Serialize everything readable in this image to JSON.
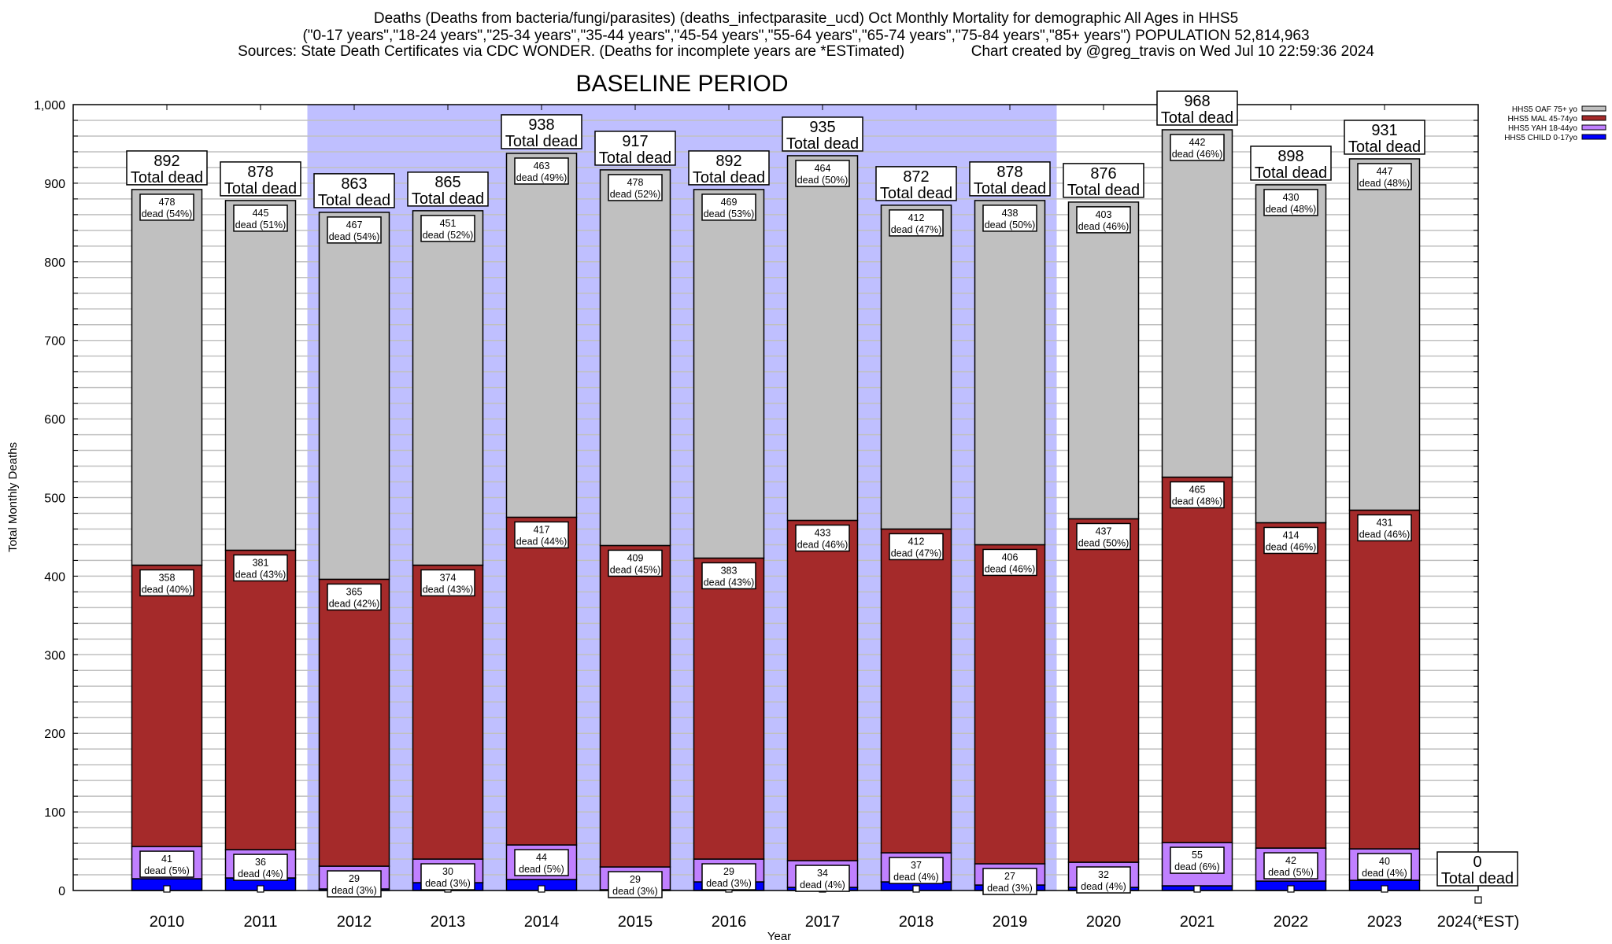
{
  "chart_data": {
    "type": "bar",
    "stacked": true,
    "title_lines": [
      "Deaths (Deaths from bacteria/fungi/parasites) (deaths_infectparasite_ucd) Oct Monthly Mortality for demographic All Ages in HHS5",
      "(\"0-17 years\",\"18-24 years\",\"25-34 years\",\"35-44 years\",\"45-54 years\",\"55-64 years\",\"65-74 years\",\"75-84 years\",\"85+ years\") POPULATION 52,814,963",
      "Sources: State Death Certificates via CDC WONDER. (Deaths for incomplete years are *ESTimated)                Chart created by @greg_travis on Wed Jul 10 22:59:36 2024"
    ],
    "xlabel": "Year",
    "ylabel": "Total Monthly Deaths",
    "ylim": [
      0,
      1000
    ],
    "xlim": [
      2009,
      2024
    ],
    "yticks": [
      0,
      100,
      200,
      300,
      400,
      500,
      600,
      700,
      800,
      900,
      1000
    ],
    "ytick_labels": [
      "0",
      "100",
      "200",
      "300",
      "400",
      "500",
      "600",
      "700",
      "800",
      "900",
      "1,000"
    ],
    "minor_grid_step": 20,
    "grid": true,
    "categories": [
      "2010",
      "2011",
      "2012",
      "2013",
      "2014",
      "2015",
      "2016",
      "2017",
      "2018",
      "2019",
      "2020",
      "2021",
      "2022",
      "2023",
      "2024(*EST)"
    ],
    "x": [
      2010,
      2011,
      2012,
      2013,
      2014,
      2015,
      2016,
      2017,
      2018,
      2019,
      2020,
      2021,
      2022,
      2023,
      2024
    ],
    "series": [
      {
        "name": "HHS5 CHILD 0-17yo",
        "color": "#0000ff",
        "values": [
          15,
          16,
          2,
          10,
          14,
          1,
          11,
          4,
          11,
          7,
          4,
          6,
          12,
          13,
          0
        ]
      },
      {
        "name": "HHS5 YAH 18-44yo",
        "color": "#c080ff",
        "values": [
          41,
          36,
          29,
          30,
          44,
          29,
          29,
          34,
          37,
          27,
          32,
          55,
          42,
          40,
          0
        ],
        "labels": [
          "41\ndead (5%)",
          "36\ndead (4%)",
          "29\ndead (3%)",
          "30\ndead (3%)",
          "44\ndead (5%)",
          "29\ndead (3%)",
          "29\ndead (3%)",
          "34\ndead (4%)",
          "37\ndead (4%)",
          "27\ndead (3%)",
          "32\ndead (4%)",
          "55\ndead (6%)",
          "42\ndead (5%)",
          "40\ndead (4%)",
          null
        ]
      },
      {
        "name": "HHS5 MAL 45-74yo",
        "color": "#a52a2a",
        "values": [
          358,
          381,
          365,
          374,
          417,
          409,
          383,
          433,
          412,
          406,
          437,
          465,
          414,
          431,
          0
        ],
        "labels": [
          "358\ndead (40%)",
          "381\ndead (43%)",
          "365\ndead (42%)",
          "374\ndead (43%)",
          "417\ndead (44%)",
          "409\ndead (45%)",
          "383\ndead (43%)",
          "433\ndead (46%)",
          "412\ndead (47%)",
          "406\ndead (46%)",
          "437\ndead (50%)",
          "465\ndead (48%)",
          "414\ndead (46%)",
          "431\ndead (46%)",
          null
        ]
      },
      {
        "name": "HHS5 OAF 75+ yo",
        "color": "#c0c0c0",
        "values": [
          478,
          445,
          467,
          451,
          463,
          478,
          469,
          464,
          412,
          438,
          403,
          442,
          430,
          447,
          0
        ],
        "labels": [
          "478\ndead (54%)",
          "445\ndead (51%)",
          "467\ndead (54%)",
          "451\ndead (52%)",
          "463\ndead (49%)",
          "478\ndead (52%)",
          "469\ndead (53%)",
          "464\ndead (50%)",
          "412\ndead (47%)",
          "438\ndead (50%)",
          "403\ndead (46%)",
          "442\ndead (46%)",
          "430\ndead (48%)",
          "447\ndead (48%)",
          null
        ]
      }
    ],
    "totals": [
      892,
      878,
      863,
      865,
      938,
      917,
      892,
      935,
      872,
      878,
      876,
      968,
      898,
      931,
      0
    ],
    "total_label_suffix": "Total dead",
    "legend": {
      "position": "top-right",
      "entries": [
        "HHS5 OAF 75+ yo",
        "HHS5 MAL 45-74yo",
        "HHS5 YAH 18-44yo",
        "HHS5 CHILD 0-17yo"
      ]
    },
    "annotations": [
      {
        "type": "shaded-region",
        "label": "BASELINE PERIOD",
        "x_from": 2011.5,
        "x_to": 2019.5,
        "color": "#bfbfff"
      }
    ]
  }
}
